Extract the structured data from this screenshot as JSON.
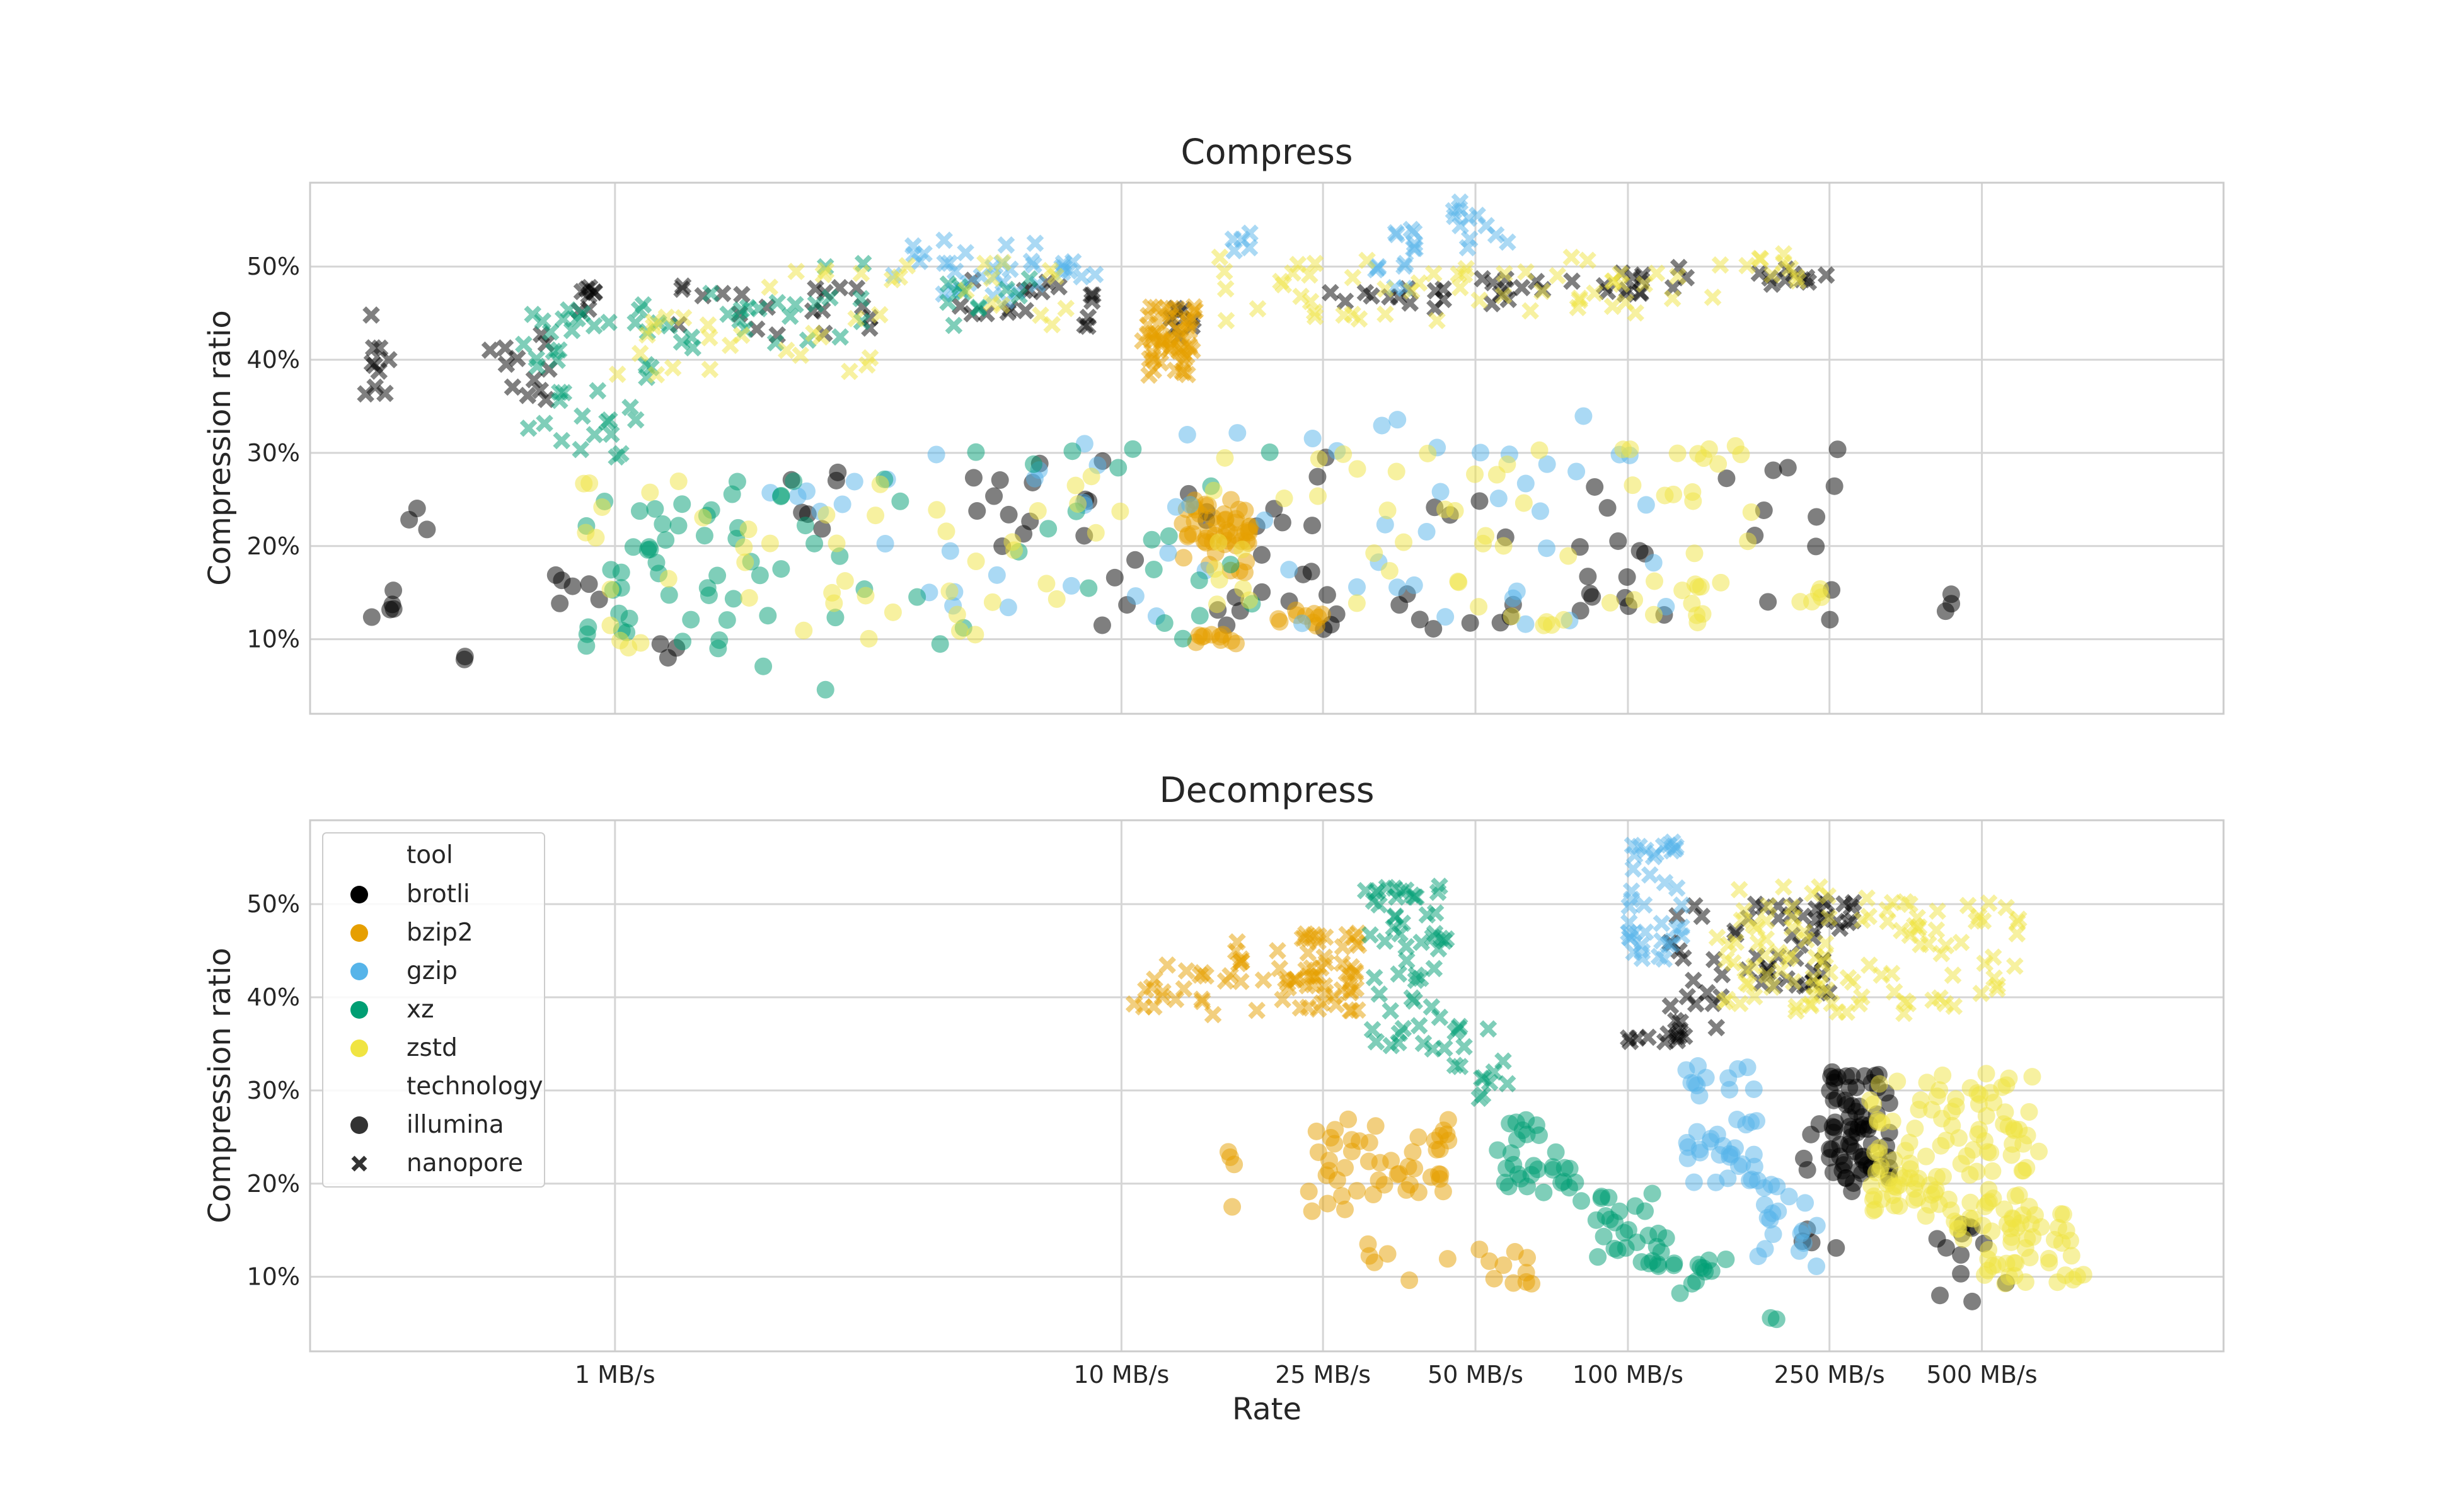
{
  "chart_data": [
    {
      "type": "scatter",
      "title": "Compress",
      "xlabel": "",
      "ylabel": "Compression ratio",
      "xscale": "log",
      "xlim": [
        0.25,
        1500
      ],
      "ylim": [
        2,
        59
      ],
      "grid": true,
      "x_ticks": [
        1,
        10,
        25,
        50,
        100,
        250,
        500
      ],
      "x_tick_labels": [
        "1 MB/s",
        "10 MB/s",
        "25 MB/s",
        "50 MB/s",
        "100 MB/s",
        "250 MB/s",
        "500 MB/s"
      ],
      "y_ticks": [
        10,
        20,
        30,
        40,
        50
      ],
      "y_tick_labels": [
        "10%",
        "20%",
        "30%",
        "40%",
        "50%"
      ],
      "series": [
        {
          "tool": "brotli",
          "technology": "nanopore",
          "clusters": [
            [
              0.32,
              0.36,
              35,
              45,
              10
            ],
            [
              0.55,
              0.75,
              35,
              43,
              12
            ],
            [
              0.85,
              0.95,
              45,
              48,
              8
            ],
            [
              1.3,
              2.2,
              42,
              48,
              10
            ],
            [
              2.3,
              3.2,
              41,
              48,
              10
            ],
            [
              4.5,
              8,
              44,
              49,
              12
            ],
            [
              8,
              10,
              43,
              47,
              6
            ],
            [
              12.5,
              14,
              41,
              46,
              8
            ],
            [
              25,
              45,
              45,
              48,
              12
            ],
            [
              50,
              90,
              46,
              49,
              12
            ],
            [
              90,
              140,
              47,
              50,
              12
            ],
            [
              180,
              250,
              48,
              50,
              10
            ]
          ]
        },
        {
          "tool": "brotli",
          "technology": "illumina",
          "clusters": [
            [
              0.33,
              0.38,
              12,
              16,
              5
            ],
            [
              0.38,
              0.43,
              21,
              26,
              3
            ],
            [
              0.5,
              0.52,
              7.5,
              8.2,
              2
            ],
            [
              0.75,
              0.95,
              12,
              17,
              6
            ],
            [
              1.2,
              1.5,
              8,
              11,
              3
            ],
            [
              2.2,
              3.3,
              20,
              28,
              6
            ],
            [
              4.8,
              7.5,
              19,
              29,
              10
            ],
            [
              8,
              11,
              11,
              30,
              8
            ],
            [
              13,
              20,
              10,
              26,
              10
            ],
            [
              20,
              30,
              11,
              31,
              12
            ],
            [
              35,
              60,
              11,
              25,
              12
            ],
            [
              80,
              120,
              12,
              31,
              14
            ],
            [
              150,
              280,
              12,
              32,
              12
            ],
            [
              420,
              440,
              13,
              16,
              3
            ]
          ]
        },
        {
          "tool": "bzip2",
          "technology": "nanopore",
          "clusters": [
            [
              11,
              14,
              38,
              46,
              60
            ]
          ]
        },
        {
          "tool": "bzip2",
          "technology": "illumina",
          "clusters": [
            [
              13,
              18,
              17,
              25,
              50
            ],
            [
              14,
              18,
              9.5,
              10.5,
              10
            ],
            [
              20,
              25,
              11,
              14,
              10
            ]
          ]
        },
        {
          "tool": "gzip",
          "technology": "nanopore",
          "clusters": [
            [
              3.5,
              5,
              47,
              53,
              14
            ],
            [
              5,
              7,
              46,
              53,
              14
            ],
            [
              7.5,
              9,
              48,
              53,
              8
            ],
            [
              16,
              18,
              51,
              54,
              5
            ],
            [
              30,
              38,
              47,
              55,
              14
            ],
            [
              45,
              60,
              52,
              57,
              12
            ]
          ]
        },
        {
          "tool": "gzip",
          "technology": "illumina",
          "clusters": [
            [
              2,
              4,
              20,
              28,
              8
            ],
            [
              4,
              9,
              13,
              31,
              14
            ],
            [
              10,
              30,
              11,
              33,
              14
            ],
            [
              30,
              60,
              12,
              34,
              14
            ],
            [
              60,
              130,
              11,
              36,
              14
            ]
          ]
        },
        {
          "tool": "xz",
          "technology": "nanopore",
          "clusters": [
            [
              0.65,
              1.2,
              29,
              46,
              40
            ],
            [
              1.2,
              2.2,
              41,
              48,
              14
            ],
            [
              2.2,
              3.2,
              42,
              51,
              10
            ],
            [
              4.5,
              7,
              43,
              49,
              10
            ]
          ]
        },
        {
          "tool": "xz",
          "technology": "illumina",
          "clusters": [
            [
              0.85,
              1.6,
              9,
              25,
              35
            ],
            [
              1.6,
              3,
              4,
              27,
              20
            ],
            [
              3,
              10,
              9,
              31,
              14
            ],
            [
              10,
              20,
              10,
              31,
              12
            ]
          ]
        },
        {
          "tool": "zstd",
          "technology": "nanopore",
          "clusters": [
            [
              1,
              1.8,
              38,
              48,
              14
            ],
            [
              1.8,
              3.5,
              38,
              50,
              14
            ],
            [
              3.5,
              8,
              42,
              51,
              14
            ],
            [
              15,
              50,
              44,
              51,
              30
            ],
            [
              50,
              150,
              45,
              51,
              25
            ],
            [
              150,
              220,
              48,
              52,
              10
            ]
          ]
        },
        {
          "tool": "zstd",
          "technology": "illumina",
          "clusters": [
            [
              0.85,
              2,
              9,
              27,
              18
            ],
            [
              2,
              6,
              9,
              28,
              20
            ],
            [
              6,
              10,
              9,
              31,
              10
            ],
            [
              15,
              40,
              11,
              30,
              20
            ],
            [
              40,
              80,
              11,
              31,
              20
            ],
            [
              90,
              180,
              11,
              32,
              30
            ],
            [
              200,
              250,
              13,
              16,
              5
            ]
          ]
        }
      ]
    },
    {
      "type": "scatter",
      "title": "Decompress",
      "xlabel": "Rate",
      "ylabel": "Compression ratio",
      "xscale": "log",
      "xlim": [
        0.25,
        1500
      ],
      "ylim": [
        2,
        59
      ],
      "grid": true,
      "x_ticks": [
        1,
        10,
        25,
        50,
        100,
        250,
        500
      ],
      "x_tick_labels": [
        "1 MB/s",
        "10 MB/s",
        "25 MB/s",
        "50 MB/s",
        "100 MB/s",
        "250 MB/s",
        "500 MB/s"
      ],
      "y_ticks": [
        10,
        20,
        30,
        40,
        50
      ],
      "y_tick_labels": [
        "10%",
        "20%",
        "30%",
        "40%",
        "50%"
      ],
      "series": [
        {
          "tool": "brotli",
          "technology": "nanopore",
          "clusters": [
            [
              100,
              130,
              35,
              36,
              8
            ],
            [
              120,
              150,
              35,
              50,
              20
            ],
            [
              150,
              250,
              40,
              50,
              35
            ],
            [
              230,
              280,
              47,
              51,
              14
            ]
          ]
        },
        {
          "tool": "brotli",
          "technology": "illumina",
          "clusters": [
            [
              250,
              330,
              20,
              32,
              70
            ],
            [
              220,
              280,
              12,
              29,
              10
            ],
            [
              400,
              580,
              7,
              16,
              12
            ]
          ]
        },
        {
          "tool": "bzip2",
          "technology": "nanopore",
          "clusters": [
            [
              10,
              12,
              38,
              42,
              6
            ],
            [
              12,
              22,
              38,
              46,
              30
            ],
            [
              22,
              30,
              38,
              47,
              50
            ]
          ]
        },
        {
          "tool": "bzip2",
          "technology": "illumina",
          "clusters": [
            [
              16,
              17,
              17,
              26,
              4
            ],
            [
              22,
              45,
              17,
              27,
              50
            ],
            [
              30,
              65,
              9,
              14,
              16
            ]
          ]
        },
        {
          "tool": "gzip",
          "technology": "nanopore",
          "clusters": [
            [
              100,
              130,
              44,
              57,
              40
            ]
          ]
        },
        {
          "tool": "gzip",
          "technology": "illumina",
          "clusters": [
            [
              130,
              180,
              20,
              33,
              40
            ],
            [
              180,
              240,
              11,
              21,
              20
            ]
          ]
        },
        {
          "tool": "xz",
          "technology": "nanopore",
          "clusters": [
            [
              30,
              45,
              34,
              52,
              55
            ],
            [
              45,
              58,
              29,
              37,
              15
            ]
          ]
        },
        {
          "tool": "xz",
          "technology": "illumina",
          "clusters": [
            [
              55,
              80,
              19,
              27,
              30
            ],
            [
              80,
              120,
              11,
              19,
              30
            ],
            [
              120,
              160,
              8,
              12,
              12
            ],
            [
              180,
              230,
              4,
              7,
              2
            ]
          ]
        },
        {
          "tool": "zstd",
          "technology": "nanopore",
          "clusters": [
            [
              150,
              600,
              38,
              52,
              110
            ]
          ]
        },
        {
          "tool": "zstd",
          "technology": "illumina",
          "clusters": [
            [
              300,
              650,
              15,
              32,
              130
            ],
            [
              450,
              800,
              9,
              17,
              40
            ]
          ]
        }
      ]
    }
  ],
  "legend": {
    "position": "upper-left",
    "tool_header": "tool",
    "tools": [
      {
        "label": "brotli",
        "color": "#000000"
      },
      {
        "label": "bzip2",
        "color": "#E69F00"
      },
      {
        "label": "gzip",
        "color": "#56B4E9"
      },
      {
        "label": "xz",
        "color": "#009E73"
      },
      {
        "label": "zstd",
        "color": "#F0E442"
      }
    ],
    "technology_header": "technology",
    "technologies": [
      {
        "label": "illumina",
        "marker": "circle"
      },
      {
        "label": "nanopore",
        "marker": "x"
      }
    ]
  },
  "colors": {
    "brotli": "#000000",
    "bzip2": "#E69F00",
    "gzip": "#56B4E9",
    "xz": "#009E73",
    "zstd": "#F0E442",
    "grid": "#d5d5d5",
    "spine": "#cccccc"
  }
}
